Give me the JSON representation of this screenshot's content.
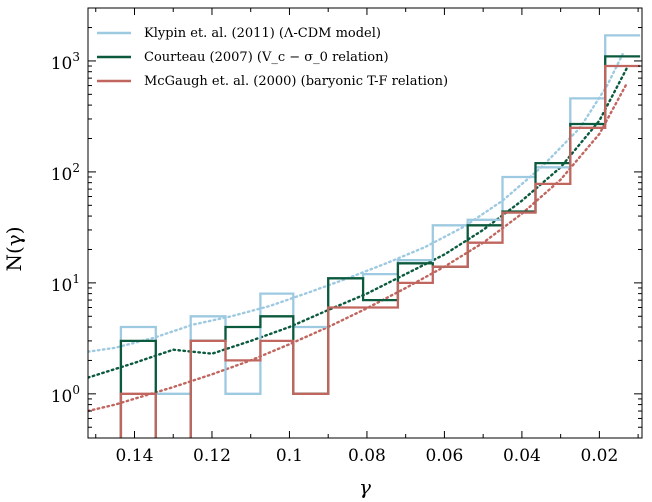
{
  "chart_data": {
    "type": "line",
    "xlabel": "γ",
    "ylabel": "N(γ)",
    "x_axis_reversed": true,
    "xlim": [
      0.152,
      0.009
    ],
    "ylim": [
      0.4,
      3000
    ],
    "y_scale": "log",
    "grid": false,
    "legend_position": "top-left",
    "x_ticks": [
      0.14,
      0.12,
      0.1,
      0.08,
      0.06,
      0.04,
      0.02
    ],
    "x_tick_labels": [
      "0.14",
      "0.12",
      "0.1",
      "0.08",
      "0.06",
      "0.04",
      "0.02"
    ],
    "y_ticks": [
      1,
      10,
      100,
      1000
    ],
    "y_tick_labels": [
      "10^0",
      "10^1",
      "10^2",
      "10^3"
    ],
    "bin_edges": [
      0.1435,
      0.1345,
      0.1255,
      0.1165,
      0.1075,
      0.099,
      0.09,
      0.081,
      0.072,
      0.063,
      0.054,
      0.045,
      0.0365,
      0.0275,
      0.0185,
      0.0095
    ],
    "series": [
      {
        "name": "Klypin et. al. (2011) (Λ-CDM model)",
        "color": "#9ecae1",
        "histogram": [
          4,
          1,
          5,
          1,
          8,
          4,
          11,
          12,
          16,
          33,
          37,
          90,
          110,
          460,
          1700
        ],
        "fit_x": [
          0.152,
          0.145,
          0.135,
          0.125,
          0.115,
          0.105,
          0.095,
          0.085,
          0.075,
          0.065,
          0.055,
          0.045,
          0.035,
          0.025,
          0.018,
          0.014
        ],
        "fit_y": [
          2.4,
          2.6,
          3.2,
          4.2,
          5.0,
          6.2,
          8.2,
          11,
          15,
          21,
          32,
          55,
          110,
          250,
          600,
          1150
        ]
      },
      {
        "name": "Courteau (2007) (V_c − σ_0 relation)",
        "color": "#0b5a3d",
        "histogram": [
          3,
          0.2,
          3,
          4,
          5,
          1,
          11,
          7,
          15,
          14,
          33,
          44,
          120,
          270,
          1100
        ],
        "fit_x": [
          0.152,
          0.14,
          0.13,
          0.12,
          0.11,
          0.1,
          0.09,
          0.08,
          0.07,
          0.06,
          0.05,
          0.04,
          0.03,
          0.02,
          0.013
        ],
        "fit_y": [
          1.4,
          1.9,
          2.5,
          2.3,
          3.0,
          4.0,
          5.7,
          8.0,
          12,
          18,
          30,
          55,
          110,
          290,
          850
        ]
      },
      {
        "name": "McGaugh et. al. (2000) (baryonic T-F relation)",
        "color": "#c0665f",
        "histogram": [
          1,
          0.2,
          3,
          2,
          3,
          1,
          6,
          6,
          10,
          14,
          23,
          43,
          78,
          250,
          900
        ],
        "fit_x": [
          0.152,
          0.145,
          0.13,
          0.12,
          0.11,
          0.1,
          0.09,
          0.08,
          0.07,
          0.06,
          0.05,
          0.04,
          0.03,
          0.02,
          0.013
        ],
        "fit_y": [
          0.7,
          0.8,
          1.15,
          1.5,
          2.0,
          2.8,
          4.0,
          5.9,
          9.0,
          14,
          23,
          42,
          85,
          220,
          620
        ]
      }
    ]
  }
}
